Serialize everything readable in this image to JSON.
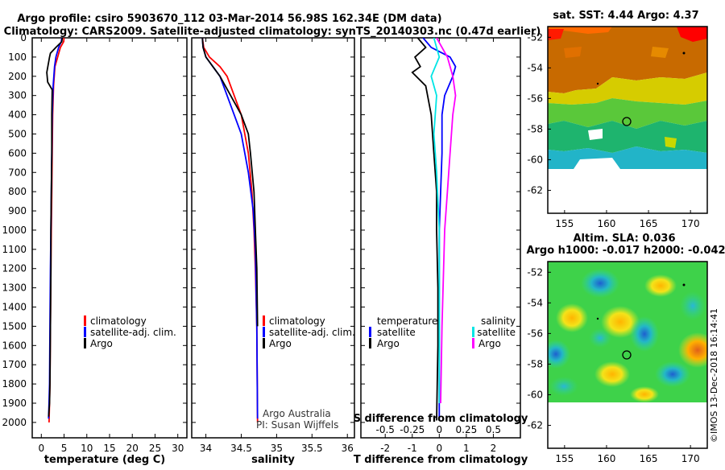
{
  "header": {
    "title_line1": "Argo profile: csiro 5903670_112 03-Mar-2014 56.98S 162.34E (DM data)",
    "title_line2": "Climatology: CARS2009. Satellite-adjusted climatology: synTS_20140303.nc (0.47d earlier)"
  },
  "colors": {
    "climatology": "#ff0000",
    "satellite": "#0000ff",
    "argo": "#000000",
    "sat_salinity": "#00e5e5",
    "argo_salinity": "#ff00ff"
  },
  "chart_data": [
    {
      "type": "line",
      "id": "temperature",
      "xlabel": "temperature (deg C)",
      "xticks": [
        0,
        5,
        10,
        15,
        20,
        25,
        30
      ],
      "xlim": [
        -2,
        32
      ],
      "ylim": [
        2080,
        0
      ],
      "yticks": [
        0,
        100,
        200,
        300,
        400,
        500,
        600,
        700,
        800,
        900,
        1000,
        1100,
        1200,
        1300,
        1400,
        1500,
        1600,
        1700,
        1800,
        1900,
        2000
      ],
      "legend": [
        "climatology",
        "satellite-adj. clim.",
        "Argo"
      ],
      "series": [
        {
          "name": "climatology",
          "color": "#ff0000",
          "x": [
            5.0,
            4.9,
            4.2,
            3.6,
            3.0,
            2.7,
            2.5,
            2.4,
            2.3,
            2.2,
            2.1,
            2.0,
            1.9,
            1.7
          ],
          "y": [
            0,
            20,
            50,
            100,
            150,
            250,
            400,
            600,
            800,
            1000,
            1200,
            1500,
            1800,
            2000
          ]
        },
        {
          "name": "satellite-adj. clim.",
          "color": "#0000ff",
          "x": [
            4.5,
            4.4,
            3.8,
            3.2,
            2.9,
            2.6,
            2.4,
            2.3,
            2.2,
            2.1,
            2.0,
            1.9,
            1.8,
            1.6
          ],
          "y": [
            0,
            20,
            50,
            100,
            150,
            250,
            400,
            600,
            800,
            1000,
            1200,
            1500,
            1800,
            1980
          ]
        },
        {
          "name": "Argo",
          "color": "#000000",
          "x": [
            4.6,
            4.5,
            3.2,
            2.0,
            1.8,
            1.2,
            1.4,
            2.4,
            2.3,
            2.3,
            2.2,
            2.1,
            2.1,
            2.0,
            1.9,
            1.8,
            1.6
          ],
          "y": [
            0,
            20,
            50,
            80,
            100,
            180,
            230,
            270,
            400,
            600,
            800,
            1000,
            1200,
            1500,
            1800,
            1900,
            1970
          ]
        }
      ]
    },
    {
      "type": "line",
      "id": "salinity",
      "xlabel": "salinity",
      "xticks": [
        34,
        34.5,
        35,
        35.5,
        36
      ],
      "xlim": [
        33.8,
        36.1
      ],
      "ylim": [
        2080,
        0
      ],
      "legend": [
        "climatology",
        "satellite-adj. clim.",
        "Argo"
      ],
      "annotation": [
        "Argo Australia",
        "PI: Susan Wijffels"
      ],
      "series": [
        {
          "name": "climatology",
          "color": "#ff0000",
          "x": [
            33.95,
            33.97,
            34.05,
            34.2,
            34.3,
            34.4,
            34.5,
            34.55,
            34.6,
            34.65,
            34.68,
            34.7,
            34.72,
            34.73
          ],
          "y": [
            0,
            50,
            100,
            150,
            200,
            300,
            400,
            500,
            600,
            800,
            1000,
            1200,
            1500,
            2000
          ]
        },
        {
          "name": "satellite-adj. clim.",
          "color": "#0000ff",
          "x": [
            33.95,
            33.96,
            34.0,
            34.1,
            34.2,
            34.3,
            34.4,
            34.5,
            34.6,
            34.67,
            34.7,
            34.72,
            34.73
          ],
          "y": [
            0,
            50,
            100,
            150,
            200,
            300,
            400,
            500,
            700,
            900,
            1100,
            1500,
            1980
          ]
        },
        {
          "name": "Argo",
          "color": "#000000",
          "x": [
            33.95,
            33.96,
            34.0,
            34.1,
            34.2,
            34.35,
            34.5,
            34.6,
            34.63,
            34.68,
            34.7,
            34.72,
            34.73
          ],
          "y": [
            0,
            50,
            100,
            150,
            200,
            300,
            400,
            500,
            600,
            800,
            1000,
            1200,
            1500
          ]
        }
      ]
    },
    {
      "type": "line",
      "id": "difference",
      "xlabel": "T difference from climatology",
      "xlabel2": "S difference from climatology",
      "xticks": [
        -2,
        -1,
        0,
        1,
        2
      ],
      "xticks2": [
        "-0.5",
        "-0.25",
        "0",
        "0.25",
        "0.5"
      ],
      "xlim": [
        -2.9,
        3.0
      ],
      "ylim": [
        2080,
        0
      ],
      "legend_left_title": "temperature",
      "legend_left": [
        "satellite",
        "Argo"
      ],
      "legend_right_title": "salinity",
      "legend_right": [
        "satellite",
        "Argo"
      ],
      "series": [
        {
          "name": "satellite",
          "color": "#0000ff",
          "x": [
            -0.6,
            -0.3,
            0.4,
            0.6,
            0.5,
            0.2,
            0.1,
            0.1,
            0.05,
            0.0,
            0.0,
            0.0,
            0.0
          ],
          "y": [
            0,
            50,
            100,
            150,
            200,
            300,
            400,
            600,
            800,
            1000,
            1300,
            1600,
            1990
          ]
        },
        {
          "name": "Argo",
          "color": "#000000",
          "x": [
            -0.8,
            -0.5,
            -0.9,
            -0.7,
            -1.0,
            -0.5,
            -0.3,
            -0.2,
            -0.1,
            -0.1,
            -0.05,
            -0.05,
            -0.1
          ],
          "y": [
            0,
            50,
            100,
            150,
            180,
            250,
            400,
            600,
            800,
            1000,
            1300,
            1600,
            1990
          ]
        },
        {
          "name": "satellite",
          "color": "#00e5e5",
          "x": [
            -0.2,
            0.0,
            -0.3,
            -0.1,
            -0.2,
            -0.1,
            0.0,
            0.0,
            0.0
          ],
          "y": [
            0,
            100,
            200,
            300,
            500,
            700,
            1000,
            1500,
            1900
          ]
        },
        {
          "name": "Argo",
          "color": "#ff00ff",
          "x": [
            -0.1,
            0.3,
            0.5,
            0.6,
            0.5,
            0.4,
            0.3,
            0.2,
            0.1,
            0.05
          ],
          "y": [
            0,
            100,
            200,
            300,
            400,
            600,
            800,
            1000,
            1500,
            1900
          ]
        }
      ]
    },
    {
      "type": "heatmap",
      "id": "sst_map",
      "title": "sat. SST: 4.44 Argo: 4.37",
      "xticks": [
        155,
        160,
        165,
        170
      ],
      "yticks": [
        -52,
        -54,
        -56,
        -58,
        -60,
        -62
      ],
      "xlim": [
        153,
        172
      ],
      "ylim": [
        -63.5,
        -51.3
      ],
      "marker": {
        "lon": 162.34,
        "lat": -56.98
      }
    },
    {
      "type": "heatmap",
      "id": "sla_map",
      "title": "Altim. SLA: 0.036",
      "subtitle": "Argo h1000: -0.017 h2000: -0.042",
      "xticks": [
        155,
        160,
        165,
        170
      ],
      "yticks": [
        -52,
        -54,
        -56,
        -58,
        -60,
        -62
      ],
      "xlim": [
        153,
        172
      ],
      "ylim": [
        -63.5,
        -51.3
      ],
      "marker": {
        "lon": 162.34,
        "lat": -56.98
      }
    }
  ],
  "footer": {
    "credit": "©IMOS 13-Dec-2018 16:14:41"
  }
}
